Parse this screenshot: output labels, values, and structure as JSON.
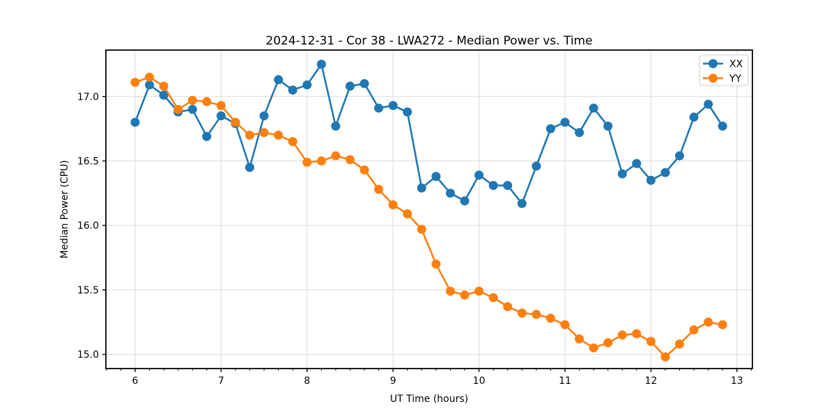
{
  "chart_data": {
    "type": "line",
    "title": "2024-12-31 - Cor 38 - LWA272 - Median Power vs. Time",
    "xlabel": "UT Time (hours)",
    "ylabel": "Median Power (CPU)",
    "xlim": [
      5.66,
      13.18
    ],
    "ylim": [
      14.89,
      17.36
    ],
    "xticks": [
      6,
      7,
      8,
      9,
      10,
      11,
      12,
      13
    ],
    "yticks": [
      15.0,
      15.5,
      16.0,
      16.5,
      17.0
    ],
    "x_minor_per_major": 6,
    "grid": "major-only, light gray, on",
    "legend_position": "upper right",
    "background_color": "#ffffff",
    "grid_color": "#d9d9d9",
    "spine_color": "#000000",
    "x": [
      6.0,
      6.167,
      6.333,
      6.5,
      6.667,
      6.833,
      7.0,
      7.167,
      7.333,
      7.5,
      7.667,
      7.833,
      8.0,
      8.167,
      8.333,
      8.5,
      8.667,
      8.833,
      9.0,
      9.167,
      9.333,
      9.5,
      9.667,
      9.833,
      10.0,
      10.167,
      10.333,
      10.5,
      10.667,
      10.833,
      11.0,
      11.167,
      11.333,
      11.5,
      11.667,
      11.833,
      12.0,
      12.167,
      12.333,
      12.5,
      12.667,
      12.833
    ],
    "series": [
      {
        "name": "XX",
        "color": "#1f77b4",
        "values": [
          16.8,
          17.09,
          17.01,
          16.88,
          16.9,
          16.69,
          16.85,
          16.79,
          16.45,
          16.85,
          17.13,
          17.05,
          17.09,
          17.25,
          16.77,
          17.08,
          17.1,
          16.91,
          16.93,
          16.88,
          16.29,
          16.38,
          16.25,
          16.19,
          16.39,
          16.31,
          16.31,
          16.17,
          16.46,
          16.75,
          16.8,
          16.72,
          16.91,
          16.77,
          16.4,
          16.48,
          16.35,
          16.41,
          16.54,
          16.84,
          16.94,
          16.77
        ]
      },
      {
        "name": "YY",
        "color": "#ff7f0e",
        "values": [
          17.11,
          17.15,
          17.08,
          16.9,
          16.97,
          16.96,
          16.93,
          16.8,
          16.7,
          16.72,
          16.7,
          16.65,
          16.49,
          16.5,
          16.54,
          16.51,
          16.43,
          16.28,
          16.16,
          16.09,
          15.97,
          15.7,
          15.49,
          15.46,
          15.49,
          15.44,
          15.37,
          15.32,
          15.31,
          15.28,
          15.23,
          15.12,
          15.05,
          15.09,
          15.15,
          15.16,
          15.1,
          14.98,
          15.08,
          15.19,
          15.25,
          15.23
        ]
      }
    ]
  }
}
